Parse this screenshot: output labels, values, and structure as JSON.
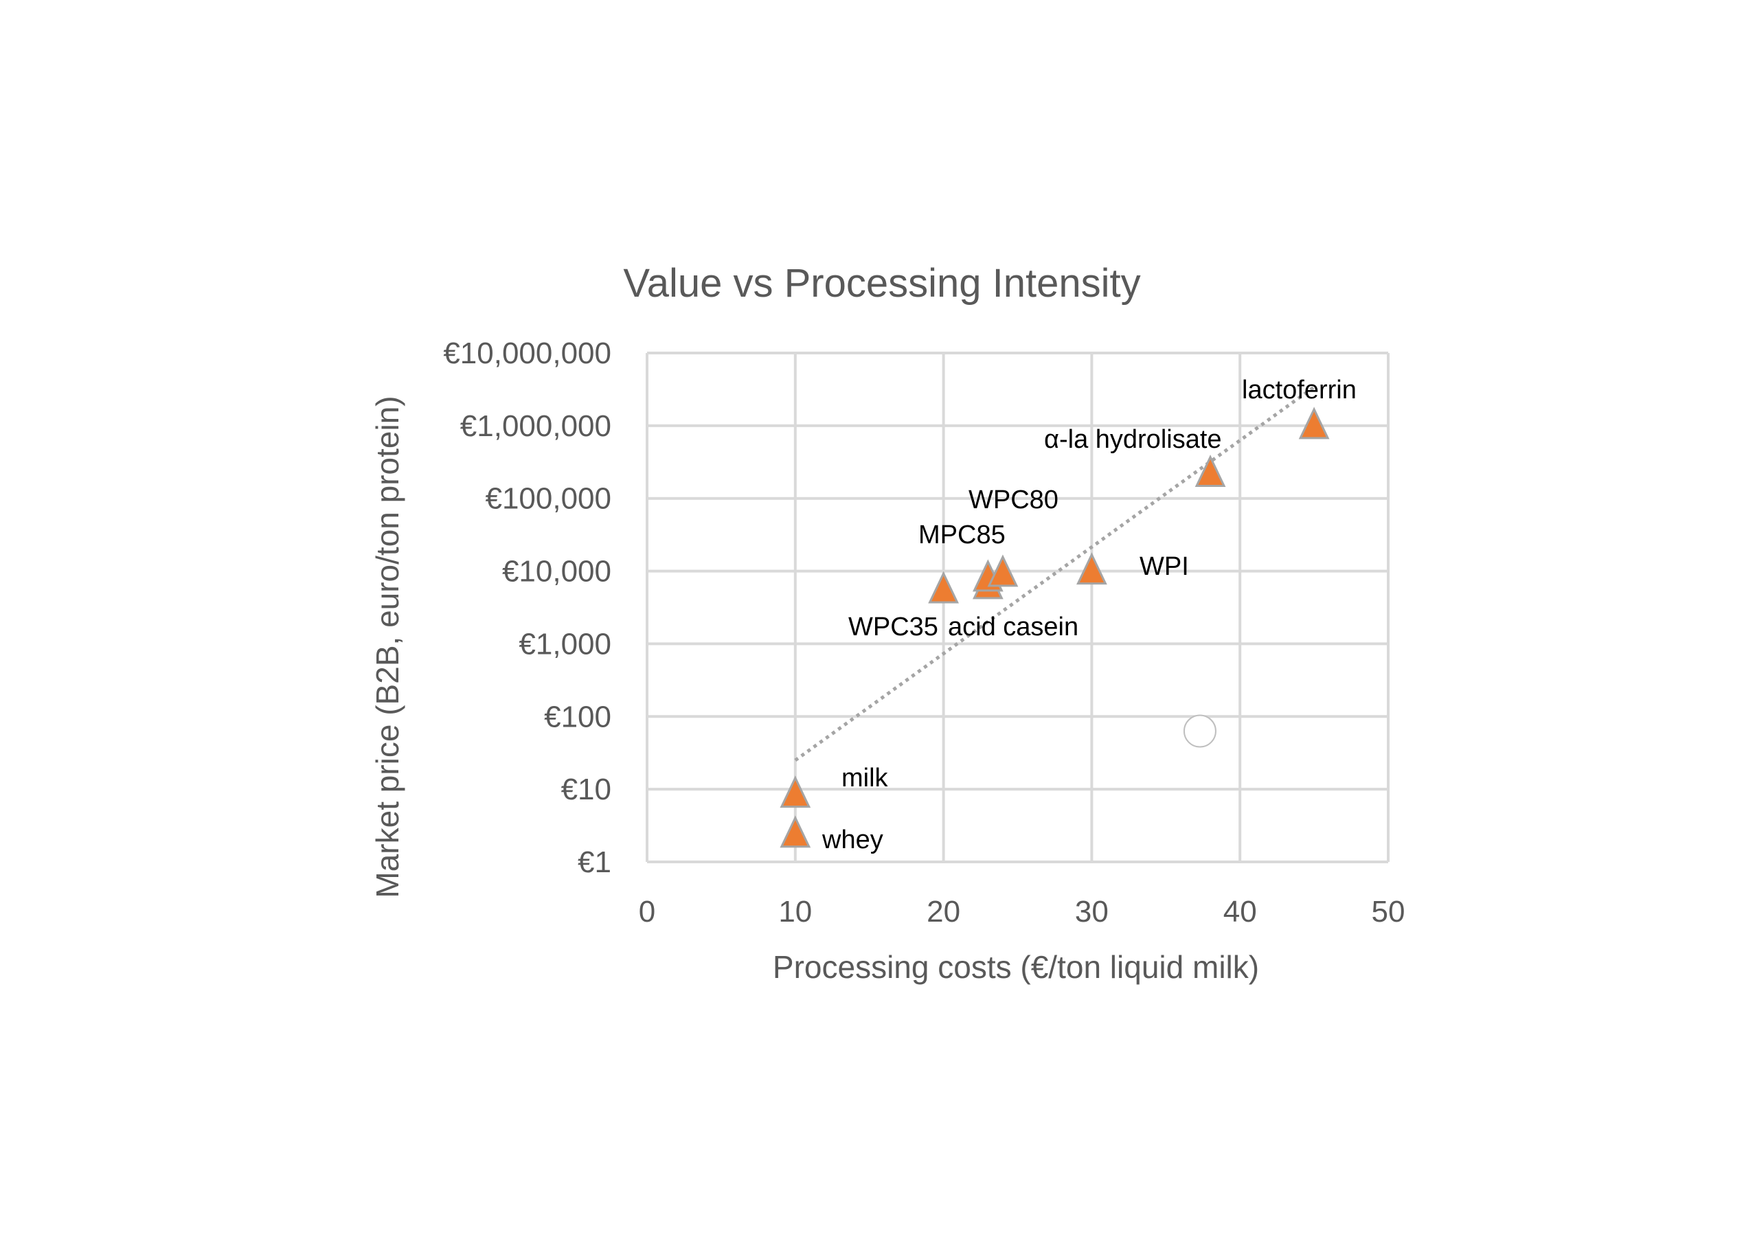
{
  "chart_data": {
    "type": "scatter",
    "title": "Value vs Processing Intensity",
    "xlabel": "Processing costs (€/ton liquid milk)",
    "ylabel": "Market price (B2B, euro/ton protein)",
    "xlim": [
      0,
      50
    ],
    "ylim": [
      1,
      10000000
    ],
    "y_scale": "log",
    "grid": true,
    "x_ticks": [
      "0",
      "10",
      "20",
      "30",
      "40",
      "50"
    ],
    "y_ticks": [
      "€1",
      "€10",
      "€100",
      "€1,000",
      "€10,000",
      "€100,000",
      "€1,000,000",
      "€10,000,000"
    ],
    "marker": "triangle",
    "marker_color": "#ED7D31",
    "marker_edge_color": "#A5A5A5",
    "points": [
      {
        "label": "whey",
        "x": 10,
        "y": 2.4
      },
      {
        "label": "milk",
        "x": 10,
        "y": 8.5
      },
      {
        "label": "WPC35",
        "x": 20,
        "y": 5500
      },
      {
        "label": "acid casein",
        "x": 23,
        "y": 6300
      },
      {
        "label": "MPC85",
        "x": 23,
        "y": 8000
      },
      {
        "label": "WPC80",
        "x": 24,
        "y": 9300
      },
      {
        "label": "WPI",
        "x": 30,
        "y": 10000
      },
      {
        "label": "α-la hydrolisate",
        "x": 38,
        "y": 220000
      },
      {
        "label": "lactoferrin",
        "x": 45,
        "y": 1000000
      }
    ],
    "trendline": {
      "type": "exponential",
      "style": "dotted",
      "color": "#A5A5A5",
      "x": [
        10,
        45
      ],
      "y": [
        25,
        3400000
      ]
    },
    "extra_marker": {
      "shape": "empty-circle",
      "x": 37.3,
      "y": 63
    }
  }
}
